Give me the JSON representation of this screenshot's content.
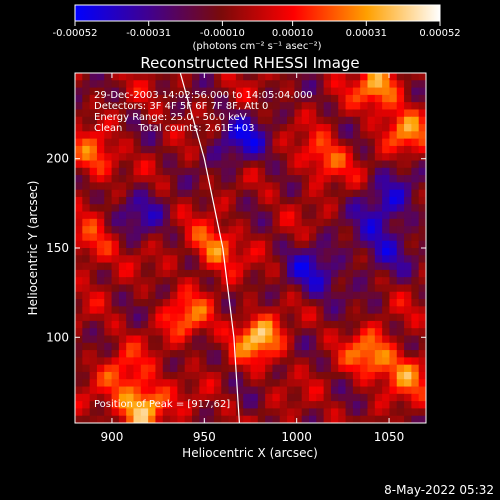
{
  "chart_data": {
    "type": "heatmap",
    "title": "Reconstructed RHESSI Image",
    "xlabel": "Heliocentric X (arcsec)",
    "ylabel": "Heliocentric Y (arcsec)",
    "xlim": [
      880,
      1070
    ],
    "ylim": [
      52,
      248
    ],
    "x_ticks": [
      900,
      950,
      1000,
      1050
    ],
    "y_ticks": [
      100,
      150,
      200
    ],
    "colorbar": {
      "label": "(photons cm⁻² s⁻¹ asec⁻²)",
      "min": -0.00052,
      "max": 0.00052,
      "ticks": [
        -0.00052,
        -0.00031,
        -0.0001,
        0.0001,
        0.00031,
        0.00052
      ],
      "tick_labels": [
        "-0.00052",
        "-0.00031",
        "-0.00010",
        "0.00010",
        "0.00031",
        "0.00052"
      ],
      "colors": [
        "#0000ff",
        "#400090",
        "#7a0a0a",
        "#ff0000",
        "#ffa000",
        "#ffffff"
      ]
    },
    "info_lines": [
      "29-Dec-2003 14:02:56.000 to 14:05:04.000",
      "Detectors: 3F 4F 5F 6F 7F 8F, Att 0",
      "Energy Range: 25.0 - 50.0 keV",
      "Clean     Total counts: 2.61E+03"
    ],
    "peak_label": "Position of Peak = [917,62]",
    "peak": [
      917,
      62
    ],
    "limb_curve": [
      [
        937,
        248
      ],
      [
        950,
        200
      ],
      [
        960,
        150
      ],
      [
        966,
        100
      ],
      [
        969,
        52
      ]
    ],
    "hot_spots": [
      {
        "x": 917,
        "y": 62,
        "value": 0.00052
      },
      {
        "x": 980,
        "y": 100,
        "value": 0.00045
      },
      {
        "x": 1040,
        "y": 90,
        "value": 0.00035
      },
      {
        "x": 1060,
        "y": 80,
        "value": 0.0003
      },
      {
        "x": 1045,
        "y": 240,
        "value": 0.0004
      },
      {
        "x": 890,
        "y": 200,
        "value": 0.0003
      },
      {
        "x": 890,
        "y": 150,
        "value": 0.00025
      },
      {
        "x": 955,
        "y": 150,
        "value": 0.00035
      },
      {
        "x": 1015,
        "y": 200,
        "value": 0.0003
      },
      {
        "x": 1060,
        "y": 215,
        "value": 0.0003
      },
      {
        "x": 940,
        "y": 110,
        "value": 0.0003
      },
      {
        "x": 905,
        "y": 80,
        "value": 0.00025
      }
    ],
    "cold_spots": [
      {
        "x": 970,
        "y": 210,
        "value": -0.0003
      },
      {
        "x": 1010,
        "y": 135,
        "value": -0.0003
      },
      {
        "x": 1045,
        "y": 150,
        "value": -0.00025
      },
      {
        "x": 915,
        "y": 170,
        "value": -0.0002
      },
      {
        "x": 1050,
        "y": 175,
        "value": -0.0003
      }
    ]
  },
  "footer": {
    "date": "8-May-2022 05:32"
  }
}
